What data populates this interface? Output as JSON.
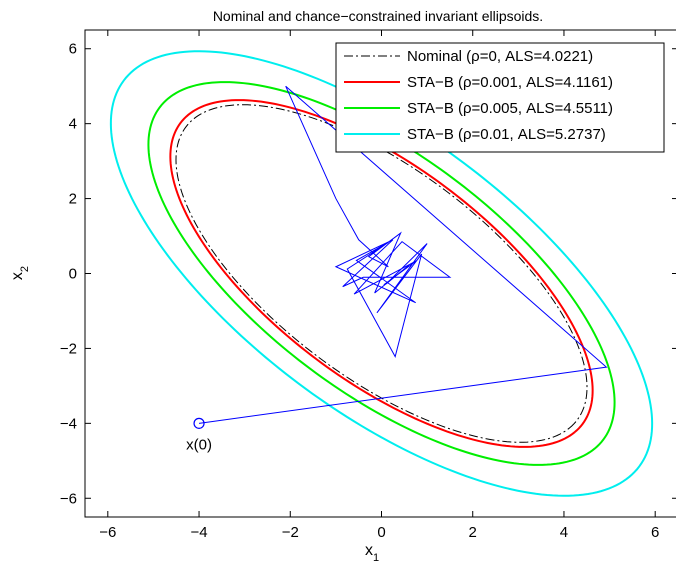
{
  "chart_data": {
    "type": "line",
    "title": "Nominal and chance−constrained invariant ellipsoids.",
    "xlabel": {
      "base": "x",
      "sub": "1"
    },
    "ylabel": {
      "base": "x",
      "sub": "2"
    },
    "xlim": [
      -6.5,
      6.5
    ],
    "ylim": [
      -6.5,
      6.5
    ],
    "xticks": [
      -6,
      -4,
      -2,
      0,
      2,
      4,
      6
    ],
    "yticks": [
      -6,
      -4,
      -2,
      0,
      2,
      4,
      6
    ],
    "xtick_labels": [
      "−6",
      "−4",
      "−2",
      "0",
      "2",
      "4",
      "6"
    ],
    "ytick_labels": [
      "−6",
      "−4",
      "−2",
      "0",
      "2",
      "4",
      "6"
    ],
    "grid": false,
    "legend_position": "top-right",
    "series": [
      {
        "name": "Nominal (ρ=0, ALS=4.0221)",
        "color": "#000000",
        "dash": "dashdot",
        "ellipse": {
          "a": 5.83,
          "b": 2.57,
          "angle_deg": -45
        }
      },
      {
        "name": "STA−B (ρ=0.001, ALS=4.1161)",
        "color": "#ff0000",
        "dash": "solid",
        "ellipse": {
          "a": 5.99,
          "b": 2.64,
          "angle_deg": -45
        }
      },
      {
        "name": "STA−B (ρ=0.005, ALS=4.5511)",
        "color": "#00ee00",
        "dash": "solid",
        "ellipse": {
          "a": 6.61,
          "b": 2.92,
          "angle_deg": -45
        }
      },
      {
        "name": "STA−B (ρ=0.01, ALS=5.2737)",
        "color": "#00eeee",
        "dash": "solid",
        "ellipse": {
          "a": 7.68,
          "b": 3.38,
          "angle_deg": -45
        }
      }
    ],
    "trajectory": {
      "color": "#0000ff",
      "points": [
        [
          -4.0,
          -4.0
        ],
        [
          4.93,
          -2.5
        ],
        [
          -2.1,
          5.0
        ],
        [
          -1.0,
          2.0
        ],
        [
          -0.5,
          0.9
        ],
        [
          0.15,
          0.18
        ],
        [
          -0.28,
          0.45
        ],
        [
          0.42,
          1.08
        ],
        [
          -0.15,
          -0.52
        ],
        [
          0.6,
          0.22
        ],
        [
          0.1,
          -0.28
        ],
        [
          1.0,
          0.8
        ],
        [
          -0.1,
          -1.05
        ],
        [
          0.88,
          0.52
        ],
        [
          0.3,
          -2.22
        ],
        [
          -0.75,
          0.12
        ],
        [
          0.15,
          0.83
        ],
        [
          -0.55,
          0.35
        ],
        [
          0.75,
          -0.78
        ],
        [
          -1.0,
          0.18
        ],
        [
          0.25,
          0.9
        ],
        [
          -0.85,
          -0.35
        ],
        [
          -0.4,
          -0.1
        ],
        [
          1.5,
          -0.1
        ],
        [
          0.45,
          0.85
        ],
        [
          -0.6,
          -0.55
        ],
        [
          0.78,
          0.35
        ],
        [
          0.05,
          -0.3
        ]
      ],
      "start_label": "x(0)",
      "start_point": [
        -4.0,
        -4.0
      ]
    }
  }
}
